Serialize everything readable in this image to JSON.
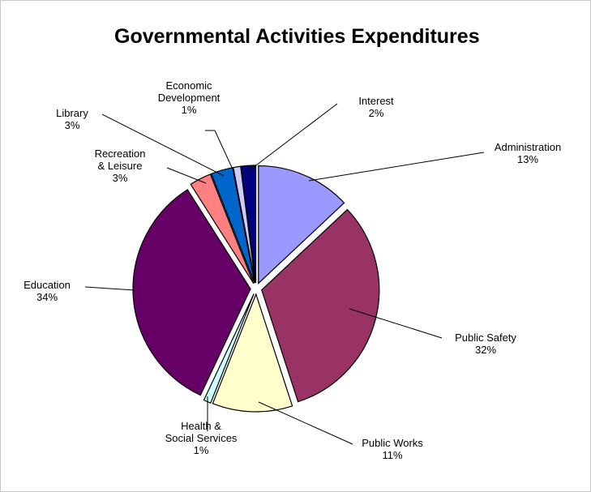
{
  "chart_data": {
    "type": "pie",
    "title": "Governmental Activities Expenditures",
    "slices": [
      {
        "category": "Administration",
        "value": 13,
        "label": "13%",
        "color": "#9999ff"
      },
      {
        "category": "Public Safety",
        "value": 32,
        "label": "32%",
        "color": "#993366"
      },
      {
        "category": "Public Works",
        "value": 11,
        "label": "11%",
        "color": "#ffffcc"
      },
      {
        "category": "Health & Social Services",
        "value": 1,
        "label": "1%",
        "color": "#ccffff"
      },
      {
        "category": "Education",
        "value": 34,
        "label": "34%",
        "color": "#660066"
      },
      {
        "category": "Recreation & Leisure",
        "value": 3,
        "label": "3%",
        "color": "#ff8080"
      },
      {
        "category": "Library",
        "value": 3,
        "label": "3%",
        "color": "#0066cc"
      },
      {
        "category": "Economic Development",
        "value": 1,
        "label": "1%",
        "color": "#ccccff"
      },
      {
        "category": "Interest",
        "value": 2,
        "label": "2%",
        "color": "#000080"
      }
    ],
    "exploded": true,
    "legend": "none"
  }
}
